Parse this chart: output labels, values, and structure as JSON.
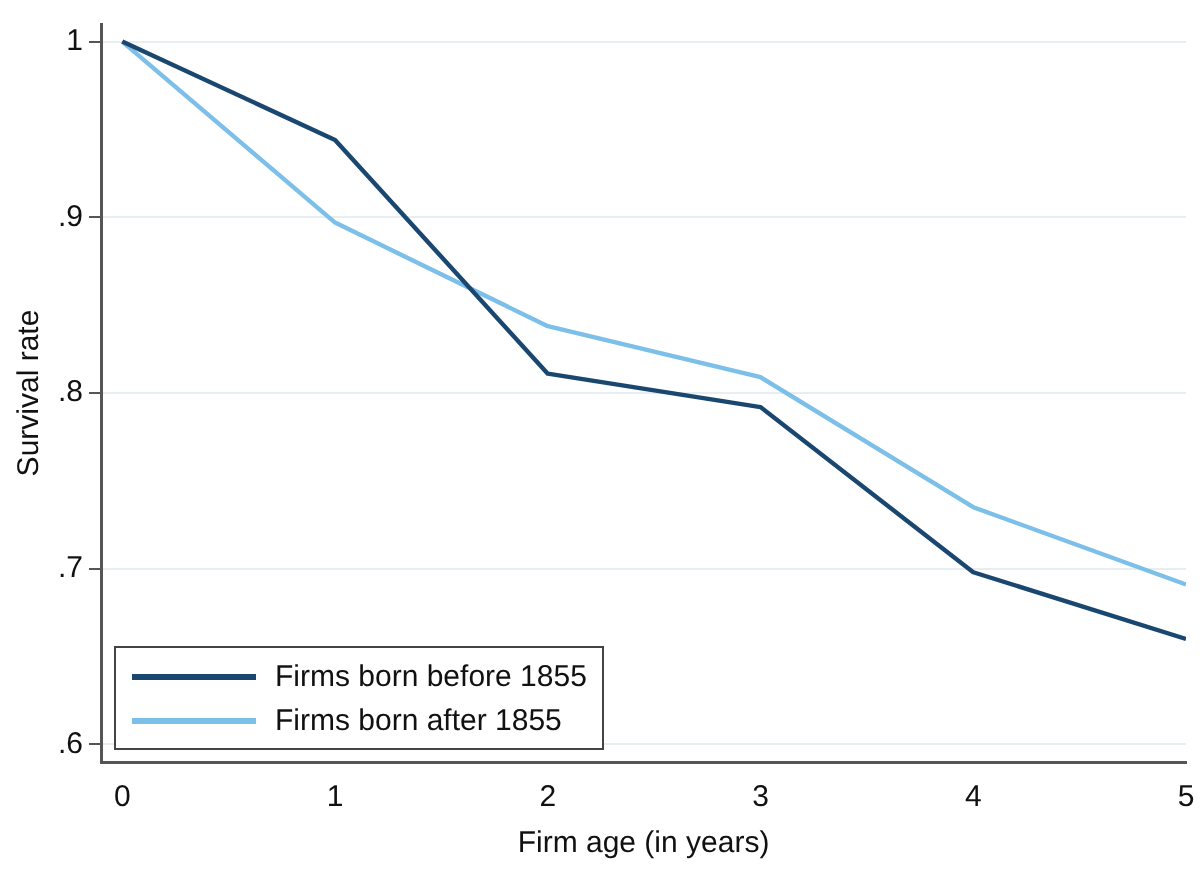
{
  "chart_data": {
    "type": "line",
    "xlabel": "Firm age (in years)",
    "ylabel": "Survival rate",
    "x": [
      0,
      1,
      2,
      3,
      4,
      5
    ],
    "series": [
      {
        "name": "Firms born before 1855",
        "color": "#1a476f",
        "values": [
          1,
          0.944,
          0.811,
          0.792,
          0.698,
          0.66
        ]
      },
      {
        "name": "Firms born after 1855",
        "color": "#7cbfe9",
        "values": [
          1,
          0.897,
          0.838,
          0.809,
          0.735,
          0.691
        ]
      }
    ],
    "xlim": [
      -0.1,
      5
    ],
    "xticks": [
      0,
      1,
      2,
      3,
      4,
      5
    ],
    "ylim": [
      0.59,
      1.01
    ],
    "yticks": [
      {
        "value": 0.6,
        "label": ".6"
      },
      {
        "value": 0.7,
        "label": ".7"
      },
      {
        "value": 0.8,
        "label": ".8"
      },
      {
        "value": 0.9,
        "label": ".9"
      },
      1
    ],
    "grid": "y",
    "legend": "bottom left",
    "marker": "none",
    "line_style": "solid"
  }
}
